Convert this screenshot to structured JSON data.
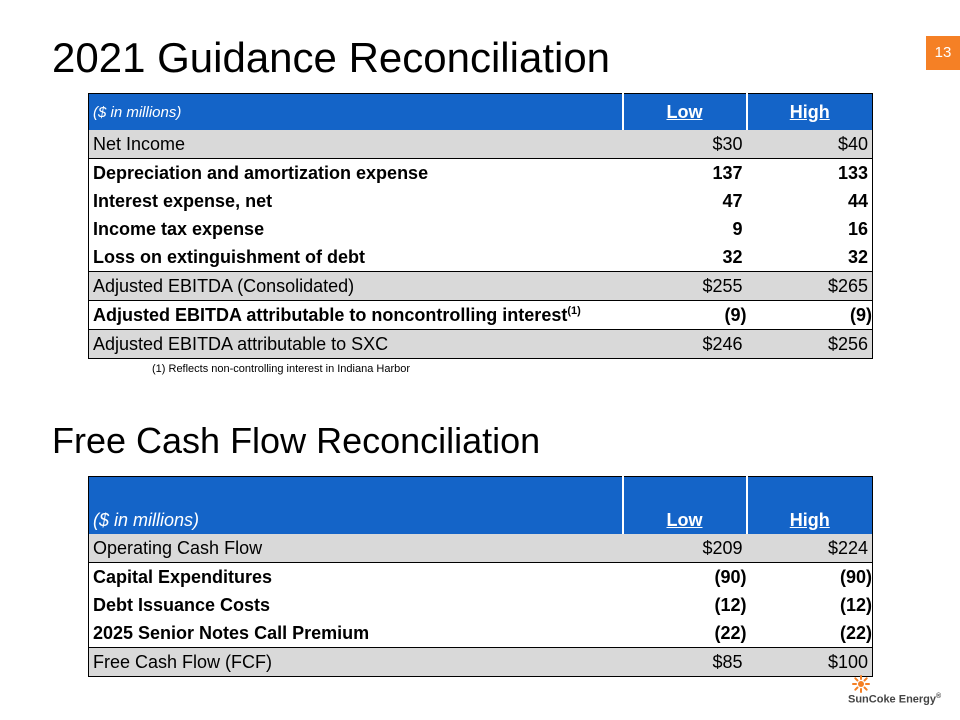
{
  "slide": {
    "title": "2021 Guidance Reconciliation",
    "page_number": "13",
    "section2_title": "Free Cash Flow Reconciliation",
    "footnote": "(1)  Reflects non-controlling interest in Indiana Harbor",
    "logo_text": "SunCoke Energy",
    "logo_mark": "®"
  },
  "guidance_table": {
    "header": {
      "label": "($ in millions)",
      "low": "Low",
      "high": "High"
    },
    "rows": [
      {
        "label": "Net Income",
        "low": "$30",
        "high": "$40"
      },
      {
        "label": "Depreciation and amortization expense",
        "low": "137",
        "high": "133"
      },
      {
        "label": "Interest expense, net",
        "low": "47",
        "high": "44"
      },
      {
        "label": "Income tax expense",
        "low": "9",
        "high": "16"
      },
      {
        "label": "Loss on extinguishment of debt",
        "low": "32",
        "high": "32"
      },
      {
        "label": "Adjusted EBITDA (Consolidated)",
        "low": "$255",
        "high": "$265"
      },
      {
        "label": "Adjusted EBITDA attributable to noncontrolling interest",
        "sup": "(1)",
        "low": "(9)",
        "high": "(9)"
      },
      {
        "label": "Adjusted EBITDA attributable to SXC",
        "low": "$246",
        "high": "$256"
      }
    ]
  },
  "fcf_table": {
    "header": {
      "label": "($ in millions)",
      "low": "Low",
      "high": "High"
    },
    "rows": [
      {
        "label": "Operating Cash Flow",
        "low": "$209",
        "high": "$224"
      },
      {
        "label": "Capital Expenditures",
        "low": "(90)",
        "high": "(90)"
      },
      {
        "label": "Debt Issuance Costs",
        "low": "(12)",
        "high": "(12)"
      },
      {
        "label": "2025 Senior Notes Call Premium",
        "low": "(22)",
        "high": "(22)"
      },
      {
        "label": "Free Cash Flow (FCF)",
        "low": "$85",
        "high": "$100"
      }
    ]
  },
  "colors": {
    "header_blue": "#1464c8",
    "row_shade": "#d9d9d9",
    "accent_orange": "#f58025"
  }
}
